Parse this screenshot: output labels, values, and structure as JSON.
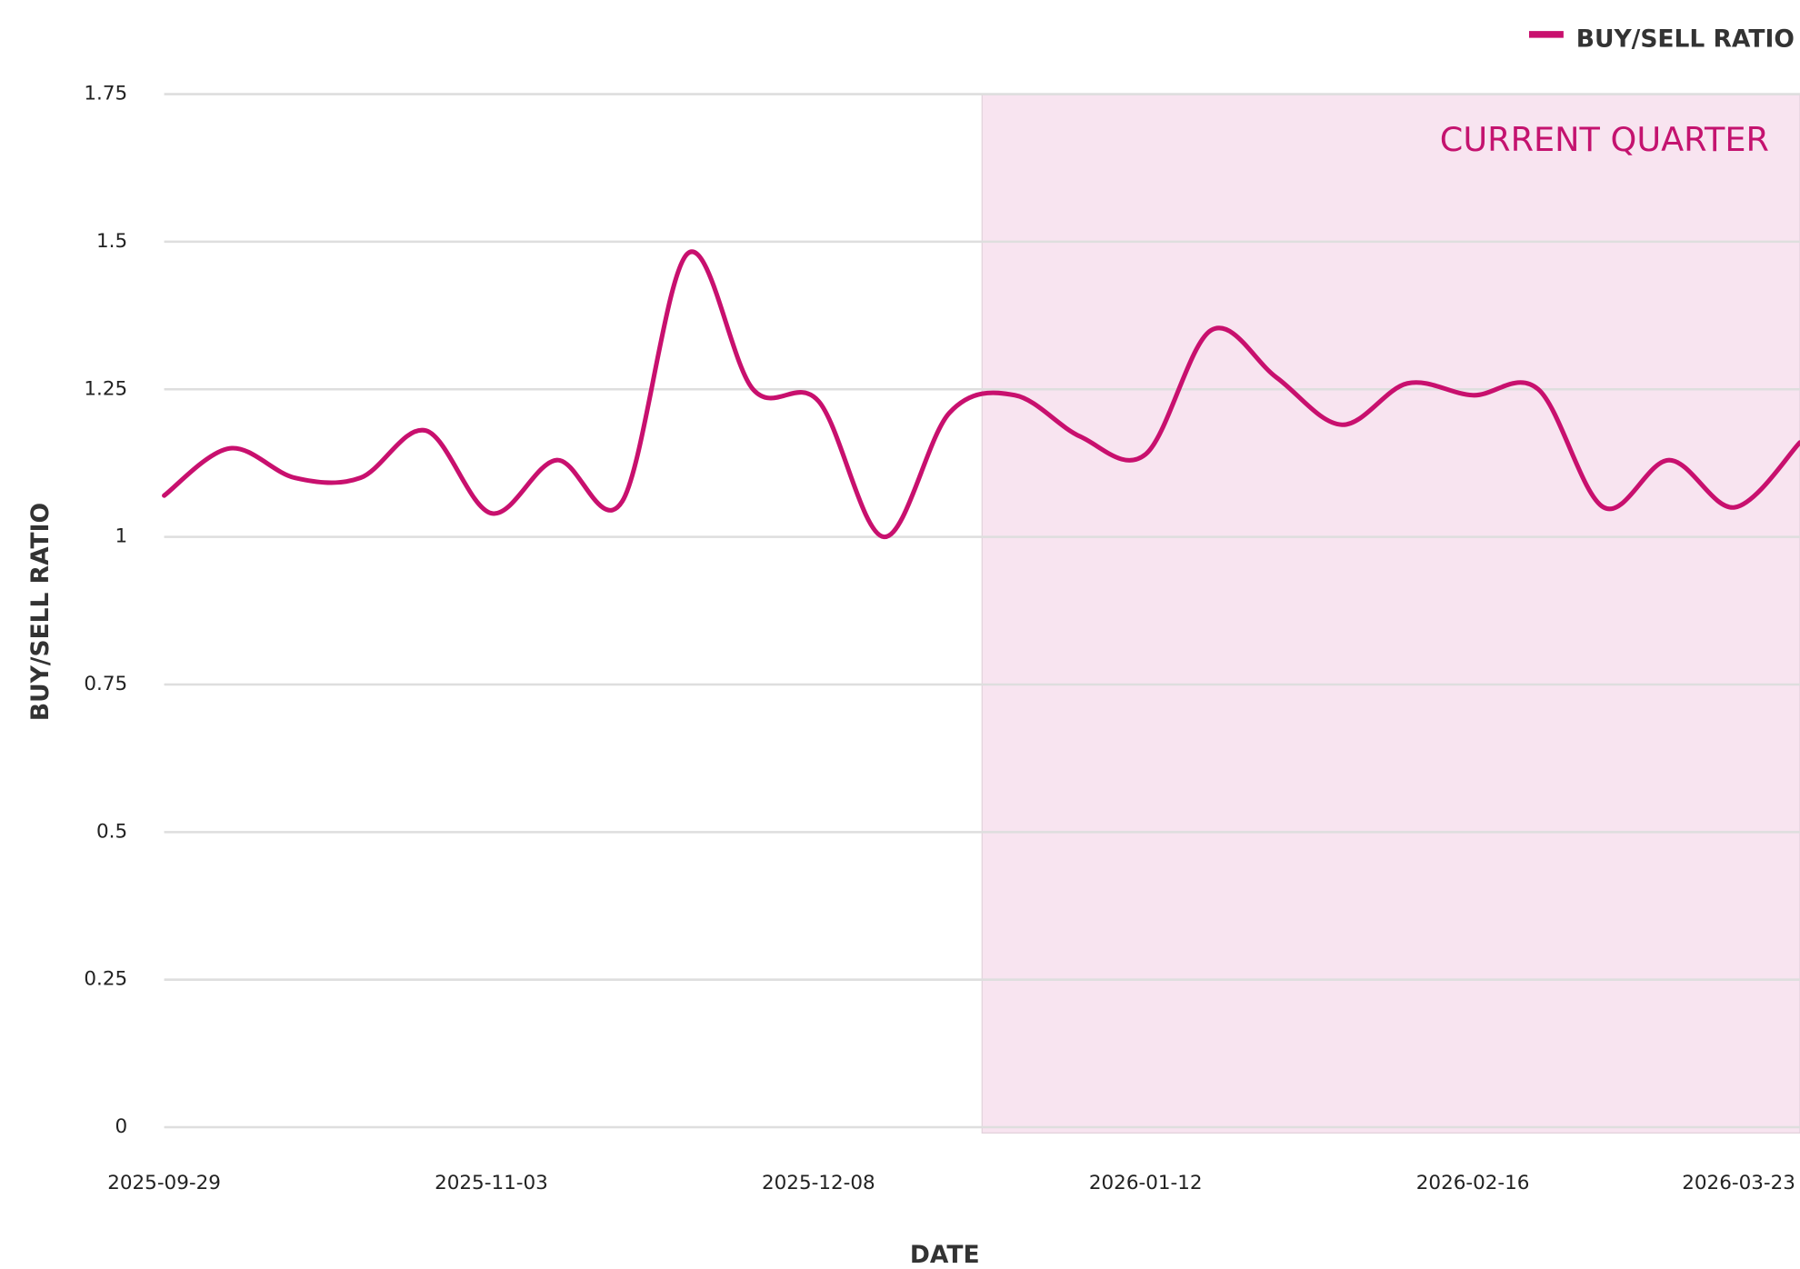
{
  "chart_data": {
    "type": "line",
    "categories": [
      "2025-09-29",
      null,
      null,
      null,
      null,
      "2025-11-03",
      null,
      null,
      null,
      null,
      "2025-12-08",
      null,
      null,
      null,
      null,
      "2026-01-12",
      null,
      null,
      null,
      null,
      "2026-02-16",
      null,
      null,
      null,
      null,
      "2026-03-23"
    ],
    "series": [
      {
        "name": "BUY/SELL RATIO",
        "color": "#c8106e",
        "values": [
          1.07,
          1.15,
          1.1,
          1.1,
          1.18,
          1.04,
          1.13,
          1.06,
          1.48,
          1.25,
          1.23,
          1.0,
          1.21,
          1.24,
          1.17,
          1.14,
          1.35,
          1.27,
          1.19,
          1.26,
          1.24,
          1.25,
          1.05,
          1.13,
          1.05,
          1.16
        ]
      }
    ],
    "xlabel": "DATE",
    "ylabel": "BUY/SELL RATIO",
    "ylim": [
      0,
      1.75
    ],
    "yticks": [
      0,
      0.25,
      0.5,
      0.75,
      1,
      1.25,
      1.5,
      1.75
    ],
    "grid": true,
    "legend": "top-right",
    "highlight": {
      "label": "CURRENT QUARTER",
      "start": 12.5,
      "color": "#f8e4f0"
    }
  }
}
